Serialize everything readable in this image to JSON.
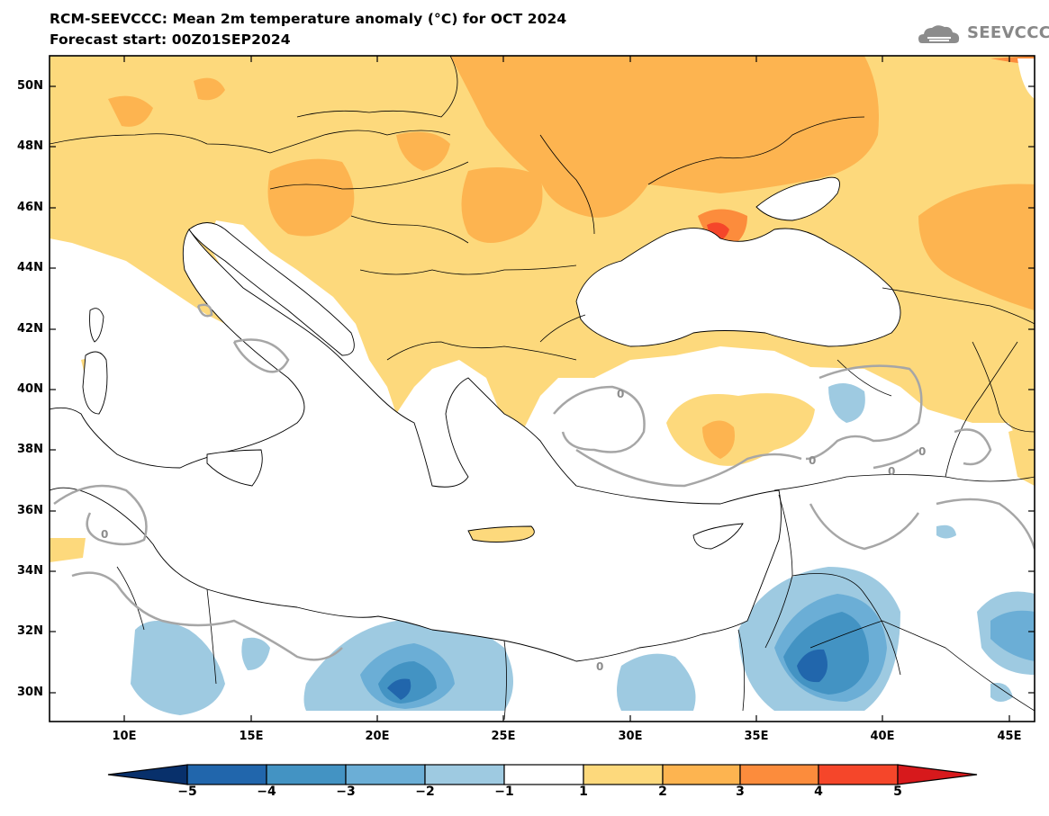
{
  "header": {
    "title": "RCM-SEEVCCC: Mean 2m temperature anomaly (°C) for OCT 2024",
    "subtitle": "Forecast start: 00Z01SEP2024",
    "logo_text": "SEEVCCC"
  },
  "map": {
    "variable": "Mean 2m temperature anomaly",
    "units": "°C",
    "period": "OCT 2024",
    "lat_ticks": [
      "50N",
      "48N",
      "46N",
      "44N",
      "42N",
      "40N",
      "38N",
      "36N",
      "34N",
      "32N",
      "30N"
    ],
    "lon_ticks": [
      "10E",
      "15E",
      "20E",
      "25E",
      "30E",
      "35E",
      "40E",
      "45E"
    ],
    "contour_label": "0"
  },
  "colorbar": {
    "labels": [
      "−5",
      "−4",
      "−3",
      "−2",
      "−1",
      "1",
      "2",
      "3",
      "4",
      "5"
    ],
    "colors": [
      "#08306b",
      "#2166ac",
      "#4393c3",
      "#6baed6",
      "#9ecae1",
      "#ffffff",
      "#fdd97c",
      "#fdb450",
      "#fc8c3c",
      "#f5462a",
      "#d7191c"
    ]
  },
  "colors": {
    "water": "#ffffff",
    "coast": "#000000",
    "contour_zero": "#a6a6a6"
  }
}
